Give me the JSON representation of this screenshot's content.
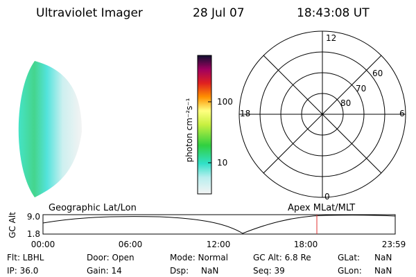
{
  "header": {
    "title": "Ultraviolet Imager",
    "date": "28 Jul 07",
    "time": "18:43:08 UT"
  },
  "colorbar": {
    "label": "photon cm⁻²s⁻¹",
    "ticks": [
      "100",
      "10"
    ]
  },
  "polar": {
    "hour_labels": [
      "12",
      "18",
      "6",
      "0"
    ],
    "lat_labels": [
      "60",
      "70",
      "80"
    ]
  },
  "timeline": {
    "left_title": "Geographic Lat/Lon",
    "right_title": "Apex MLat/MLT",
    "y_label": "GC Alt",
    "yticks": [
      "9.0",
      "1.8"
    ],
    "xticks": [
      "00:00",
      "06:00",
      "12:00",
      "18:00",
      "23:59"
    ]
  },
  "footer": {
    "rows": [
      [
        "Flt: LBHL",
        "Door: Open",
        "Mode: Normal",
        "GC Alt: 6.8 Re",
        "GLat:",
        "NaN"
      ],
      [
        "IP: 36.0",
        "Gain: 14",
        "Dsp:",
        "NaN",
        "Seq: 39",
        "GLon:",
        "NaN"
      ]
    ]
  }
}
